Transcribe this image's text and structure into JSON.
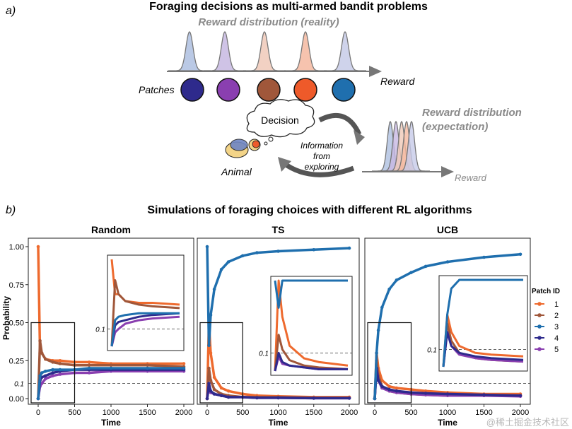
{
  "panel_a": {
    "label": "a)",
    "title": "Foraging decisions as multi-armed bandit problems",
    "reality_label": "Reward distribution (reality)",
    "reward_label": "Reward",
    "patches_label": "Patches",
    "decision_label": "Decision",
    "info_lines": [
      "Information",
      "from",
      "exploring"
    ],
    "animal_label": "Animal",
    "expectation_lines": [
      "Reward distribution",
      "(expectation)"
    ],
    "reward_label_2": "Reward",
    "patch_colors": [
      "#2e2a8c",
      "#8a3fb0",
      "#a0573a",
      "#ee5a2a",
      "#1f6fae"
    ],
    "curve_colors": [
      "#aebfe0",
      "#c7b8e2",
      "#f0c9b8",
      "#f5b9a0",
      "#c7cbe8"
    ]
  },
  "panel_b": {
    "label": "b)",
    "title": "Simulations of foraging choices with different RL algorithms",
    "ylabel": "Probability",
    "xlabel": "Time",
    "legend_title": "Patch ID",
    "legend_items": [
      "1",
      "2",
      "3",
      "4",
      "5"
    ],
    "ref_label": "0.1",
    "watermark": "@稀土掘金技术社区"
  },
  "chart_data": [
    {
      "type": "line",
      "title": "Random",
      "xlabel": "Time",
      "ylabel": "Probability",
      "xlim": [
        0,
        2000
      ],
      "ylim": [
        0,
        1
      ],
      "x_ticks": [
        "0",
        "500",
        "1000",
        "1500",
        "2000"
      ],
      "y_ticks": [
        "0.00",
        "0.25",
        "0.50",
        "0.75",
        "1.00"
      ],
      "reference_line": 0.1,
      "x": [
        0,
        25,
        50,
        100,
        200,
        300,
        500,
        700,
        1000,
        1500,
        2000
      ],
      "series": [
        {
          "name": "1",
          "color": "#ee6a2e",
          "values": [
            1.0,
            0.3,
            0.3,
            0.26,
            0.25,
            0.25,
            0.24,
            0.24,
            0.23,
            0.23,
            0.23
          ]
        },
        {
          "name": "2",
          "color": "#a0573a",
          "values": [
            0.0,
            0.38,
            0.3,
            0.26,
            0.24,
            0.23,
            0.22,
            0.22,
            0.22,
            0.22,
            0.21
          ]
        },
        {
          "name": "3",
          "color": "#1f6fae",
          "values": [
            0.0,
            0.15,
            0.17,
            0.18,
            0.19,
            0.19,
            0.19,
            0.2,
            0.2,
            0.2,
            0.2
          ]
        },
        {
          "name": "4",
          "color": "#2e2a8c",
          "values": [
            0.0,
            0.12,
            0.14,
            0.15,
            0.17,
            0.18,
            0.19,
            0.19,
            0.19,
            0.19,
            0.19
          ]
        },
        {
          "name": "5",
          "color": "#8a3fb0",
          "values": [
            0.0,
            0.08,
            0.1,
            0.13,
            0.15,
            0.16,
            0.17,
            0.17,
            0.18,
            0.18,
            0.18
          ]
        }
      ]
    },
    {
      "type": "line",
      "title": "TS",
      "xlabel": "Time",
      "ylabel": "Probability",
      "xlim": [
        0,
        2000
      ],
      "ylim": [
        0,
        1
      ],
      "x_ticks": [
        "0",
        "500",
        "1000",
        "1500",
        "2000"
      ],
      "y_ticks": [
        "0.00",
        "0.25",
        "0.50",
        "0.75",
        "1.00"
      ],
      "reference_line": 0.1,
      "x": [
        0,
        25,
        50,
        100,
        200,
        300,
        500,
        700,
        1000,
        1500,
        2000
      ],
      "series": [
        {
          "name": "1",
          "color": "#ee6a2e",
          "values": [
            0.0,
            0.5,
            0.3,
            0.14,
            0.07,
            0.05,
            0.03,
            0.02,
            0.015,
            0.01,
            0.01
          ]
        },
        {
          "name": "2",
          "color": "#a0573a",
          "values": [
            0.0,
            0.2,
            0.12,
            0.06,
            0.03,
            0.02,
            0.01,
            0.01,
            0.01,
            0.005,
            0.005
          ]
        },
        {
          "name": "3",
          "color": "#1f6fae",
          "values": [
            1.0,
            0.35,
            0.55,
            0.72,
            0.85,
            0.9,
            0.94,
            0.96,
            0.97,
            0.98,
            0.99
          ]
        },
        {
          "name": "4",
          "color": "#2e2a8c",
          "values": [
            0.0,
            0.1,
            0.05,
            0.03,
            0.02,
            0.01,
            0.01,
            0.005,
            0.005,
            0.003,
            0.003
          ]
        },
        {
          "name": "5",
          "color": "#8a3fb0",
          "values": [
            0.0,
            0.08,
            0.04,
            0.03,
            0.02,
            0.01,
            0.01,
            0.005,
            0.005,
            0.003,
            0.003
          ]
        }
      ]
    },
    {
      "type": "line",
      "title": "UCB",
      "xlabel": "Time",
      "ylabel": "Probability",
      "xlim": [
        0,
        2000
      ],
      "ylim": [
        0,
        1
      ],
      "x_ticks": [
        "0",
        "500",
        "1000",
        "1500",
        "2000"
      ],
      "y_ticks": [
        "0.00",
        "0.25",
        "0.50",
        "0.75",
        "1.00"
      ],
      "reference_line": 0.1,
      "x": [
        0,
        25,
        50,
        100,
        200,
        300,
        500,
        700,
        1000,
        1500,
        2000
      ],
      "series": [
        {
          "name": "1",
          "color": "#ee6a2e",
          "values": [
            0.0,
            0.3,
            0.2,
            0.12,
            0.08,
            0.07,
            0.06,
            0.05,
            0.04,
            0.03,
            0.03
          ]
        },
        {
          "name": "2",
          "color": "#a0573a",
          "values": [
            0.0,
            0.25,
            0.15,
            0.08,
            0.05,
            0.04,
            0.03,
            0.025,
            0.02,
            0.02,
            0.02
          ]
        },
        {
          "name": "3",
          "color": "#1f6fae",
          "values": [
            0.0,
            0.3,
            0.45,
            0.6,
            0.72,
            0.78,
            0.83,
            0.87,
            0.9,
            0.93,
            0.95
          ]
        },
        {
          "name": "4",
          "color": "#2e2a8c",
          "values": [
            0.0,
            0.2,
            0.12,
            0.08,
            0.06,
            0.05,
            0.04,
            0.035,
            0.03,
            0.025,
            0.02
          ]
        },
        {
          "name": "5",
          "color": "#8a3fb0",
          "values": [
            0.0,
            0.2,
            0.12,
            0.07,
            0.05,
            0.04,
            0.03,
            0.025,
            0.02,
            0.02,
            0.015
          ]
        }
      ]
    }
  ]
}
